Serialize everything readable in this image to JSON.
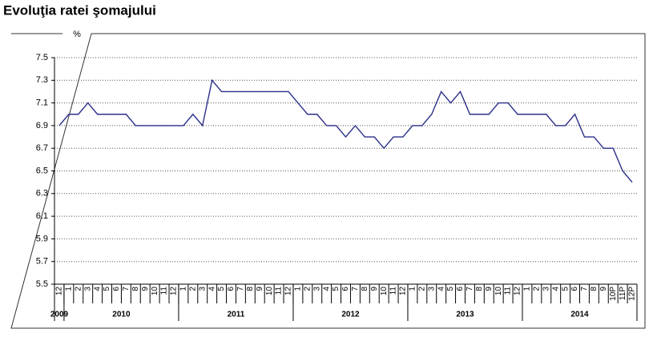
{
  "chart_data": {
    "type": "line",
    "title": "Evoluţia ratei şomajului",
    "y_label": "%",
    "categories": [
      "12",
      "1",
      "2",
      "3",
      "4",
      "5",
      "6",
      "7",
      "8",
      "9",
      "10",
      "11",
      "12",
      "1",
      "2",
      "3",
      "4",
      "5",
      "6",
      "7",
      "8",
      "9",
      "10",
      "11",
      "12",
      "1",
      "2",
      "3",
      "4",
      "5",
      "6",
      "7",
      "8",
      "9",
      "10",
      "11",
      "12",
      "1",
      "2",
      "3",
      "4",
      "5",
      "6",
      "7",
      "8",
      "9",
      "10",
      "11",
      "12",
      "1",
      "2",
      "3",
      "4",
      "5",
      "6",
      "7",
      "8",
      "9",
      "10P",
      "11P",
      "12P"
    ],
    "years": [
      "2009",
      "2010",
      "2011",
      "2012",
      "2013",
      "2014"
    ],
    "series": [
      {
        "color": "#2b2f8a",
        "values": [
          6.9,
          7.0,
          7.0,
          7.1,
          7.0,
          7.0,
          7.0,
          7.0,
          6.9,
          6.9,
          6.9,
          6.9,
          6.9,
          6.9,
          7.0,
          6.9,
          7.3,
          7.2,
          7.2,
          7.2,
          7.2,
          7.2,
          7.2,
          7.2,
          7.2,
          7.1,
          7.0,
          7.0,
          6.9,
          6.9,
          6.8,
          6.9,
          6.8,
          6.8,
          6.7,
          6.8,
          6.8,
          6.9,
          6.9,
          7.0,
          7.2,
          7.1,
          7.2,
          7.0,
          7.0,
          7.0,
          7.1,
          7.1,
          7.0,
          7.0,
          7.0,
          7.0,
          6.9,
          6.9,
          7.0,
          6.8,
          6.8,
          6.7,
          6.7,
          6.5,
          6.4
        ]
      }
    ],
    "ylim": [
      5.5,
      7.5
    ],
    "yticks": [
      5.5,
      5.7,
      5.9,
      6.1,
      6.3,
      6.5,
      6.7,
      6.9,
      7.1,
      7.3,
      7.5
    ],
    "grid": true
  }
}
